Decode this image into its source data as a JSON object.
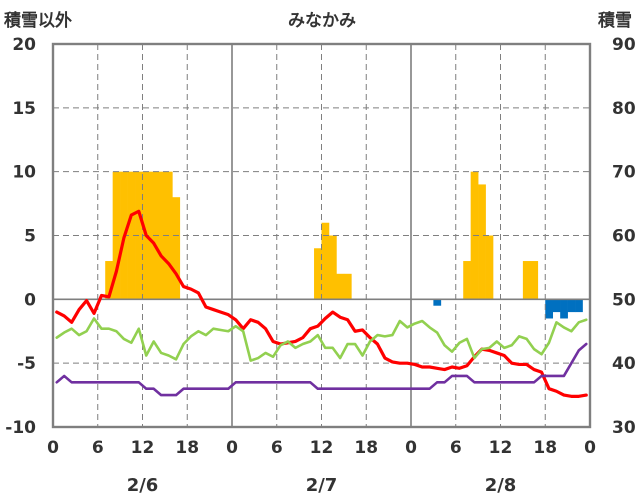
{
  "chart_data": {
    "type": "bar+line",
    "title": "みなかみ",
    "left_axis_title": "積雪以外",
    "right_axis_title": "積雪",
    "left_ylim": [
      -10,
      20
    ],
    "left_ticks": [
      "20",
      "15",
      "10",
      "5",
      "0",
      "-5",
      "-10"
    ],
    "right_ylim": [
      30,
      90
    ],
    "right_ticks": [
      "90",
      "80",
      "70",
      "60",
      "50",
      "40",
      "30"
    ],
    "x_hour_ticks": [
      "0",
      "6",
      "12",
      "18",
      "0",
      "6",
      "12",
      "18",
      "0",
      "6",
      "12",
      "18",
      "0"
    ],
    "dates": [
      "2/6",
      "2/7",
      "2/8"
    ],
    "x_range_hours": [
      0,
      72
    ],
    "colors": {
      "precip_positive": "#FFC000",
      "precip_negative": "#0070C0",
      "red": "#FF0000",
      "green": "#92D050",
      "purple": "#7030A0",
      "frame": "#7f7f7f"
    },
    "precip_bars": [
      {
        "h": 7,
        "v": 3
      },
      {
        "h": 8,
        "v": 10
      },
      {
        "h": 9,
        "v": 10
      },
      {
        "h": 10,
        "v": 10
      },
      {
        "h": 11,
        "v": 10
      },
      {
        "h": 12,
        "v": 10
      },
      {
        "h": 13,
        "v": 10
      },
      {
        "h": 14,
        "v": 10
      },
      {
        "h": 15,
        "v": 10
      },
      {
        "h": 16,
        "v": 8
      },
      {
        "h": 35,
        "v": 4
      },
      {
        "h": 36,
        "v": 6
      },
      {
        "h": 37,
        "v": 5
      },
      {
        "h": 38,
        "v": 2
      },
      {
        "h": 39,
        "v": 2
      },
      {
        "h": 51,
        "v": -0.5
      },
      {
        "h": 55,
        "v": 3
      },
      {
        "h": 56,
        "v": 10
      },
      {
        "h": 57,
        "v": 9
      },
      {
        "h": 58,
        "v": 5
      },
      {
        "h": 63,
        "v": 3
      },
      {
        "h": 64,
        "v": 3
      },
      {
        "h": 66,
        "v": -1.5
      },
      {
        "h": 67,
        "v": -1
      },
      {
        "h": 68,
        "v": -1.5
      },
      {
        "h": 69,
        "v": -1
      },
      {
        "h": 70,
        "v": -1
      }
    ],
    "series": [
      {
        "color": "red",
        "x": [
          0,
          1,
          2,
          3,
          4,
          5,
          6,
          7,
          8,
          9,
          10,
          11,
          12,
          13,
          14,
          15,
          16,
          17,
          18,
          19,
          20,
          21,
          22,
          23,
          24,
          25,
          26,
          27,
          28,
          29,
          30,
          31,
          32,
          33,
          34,
          35,
          36,
          37,
          38,
          39,
          40,
          41,
          42,
          43,
          44,
          45,
          46,
          47,
          48,
          49,
          50,
          51,
          52,
          53,
          54,
          55,
          56,
          57,
          58,
          59,
          60,
          61,
          62,
          63,
          64,
          65,
          66,
          67,
          68,
          69,
          70,
          71
        ],
        "y": [
          -1,
          -1.3,
          -1.8,
          -0.8,
          -0.1,
          -1.1,
          0.3,
          0.2,
          2.2,
          4.8,
          6.6,
          6.9,
          5,
          4.4,
          3.4,
          2.8,
          2,
          1,
          0.8,
          0.5,
          -0.6,
          -0.8,
          -1,
          -1.2,
          -1.6,
          -2.3,
          -1.6,
          -1.8,
          -2.3,
          -3.3,
          -3.5,
          -3.4,
          -3.3,
          -3,
          -2.3,
          -2.1,
          -1.5,
          -1,
          -1.4,
          -1.6,
          -2.5,
          -2.4,
          -3,
          -3.5,
          -4.6,
          -4.9,
          -5,
          -5,
          -5.1,
          -5.3,
          -5.3,
          -5.4,
          -5.5,
          -5.3,
          -5.4,
          -5.2,
          -4.5,
          -3.9,
          -4,
          -4.2,
          -4.4,
          -5,
          -5.1,
          -5.1,
          -5.5,
          -5.7,
          -7,
          -7.2,
          -7.5,
          -7.6,
          -7.6,
          -7.5
        ]
      },
      {
        "color": "green",
        "x": [
          0,
          1,
          2,
          3,
          4,
          5,
          6,
          7,
          8,
          9,
          10,
          11,
          12,
          13,
          14,
          15,
          16,
          17,
          18,
          19,
          20,
          21,
          22,
          23,
          24,
          25,
          26,
          27,
          28,
          29,
          30,
          31,
          32,
          33,
          34,
          35,
          36,
          37,
          38,
          39,
          40,
          41,
          42,
          43,
          44,
          45,
          46,
          47,
          48,
          49,
          50,
          51,
          52,
          53,
          54,
          55,
          56,
          57,
          58,
          59,
          60,
          61,
          62,
          63,
          64,
          65,
          66,
          67,
          68,
          69,
          70,
          71
        ],
        "y": [
          -3,
          -2.6,
          -2.3,
          -2.8,
          -2.5,
          -1.5,
          -2.3,
          -2.3,
          -2.5,
          -3.1,
          -3.4,
          -2.3,
          -4.4,
          -3.3,
          -4.2,
          -4.4,
          -4.7,
          -3.5,
          -2.9,
          -2.5,
          -2.8,
          -2.3,
          -2.4,
          -2.5,
          -2.1,
          -2.5,
          -4.8,
          -4.6,
          -4.2,
          -4.5,
          -3.6,
          -3.3,
          -3.8,
          -3.5,
          -3.3,
          -2.8,
          -3.8,
          -3.8,
          -4.6,
          -3.5,
          -3.5,
          -4.4,
          -3.3,
          -2.8,
          -2.9,
          -2.8,
          -1.7,
          -2.2,
          -1.9,
          -1.7,
          -2.2,
          -2.6,
          -3.6,
          -4.1,
          -3.4,
          -3.1,
          -4.6,
          -3.9,
          -3.8,
          -3.3,
          -3.8,
          -3.6,
          -2.9,
          -3.1,
          -3.9,
          -4.3,
          -3.4,
          -1.8,
          -2.2,
          -2.5,
          -1.8,
          -1.6
        ]
      },
      {
        "color": "purple",
        "x": [
          0,
          1,
          2,
          3,
          4,
          5,
          6,
          7,
          8,
          9,
          10,
          11,
          12,
          13,
          14,
          15,
          16,
          17,
          18,
          19,
          20,
          21,
          22,
          23,
          24,
          25,
          26,
          27,
          28,
          29,
          30,
          31,
          32,
          33,
          34,
          35,
          36,
          37,
          38,
          39,
          40,
          41,
          42,
          43,
          44,
          45,
          46,
          47,
          48,
          49,
          50,
          51,
          52,
          53,
          54,
          55,
          56,
          57,
          58,
          59,
          60,
          61,
          62,
          63,
          64,
          65,
          66,
          67,
          68,
          69,
          70,
          71
        ],
        "y": [
          -6.5,
          -6,
          -6.5,
          -6.5,
          -6.5,
          -6.5,
          -6.5,
          -6.5,
          -6.5,
          -6.5,
          -6.5,
          -6.5,
          -7,
          -7,
          -7.5,
          -7.5,
          -7.5,
          -7,
          -7,
          -7,
          -7,
          -7,
          -7,
          -7,
          -6.5,
          -6.5,
          -6.5,
          -6.5,
          -6.5,
          -6.5,
          -6.5,
          -6.5,
          -6.5,
          -6.5,
          -6.5,
          -7,
          -7,
          -7,
          -7,
          -7,
          -7,
          -7,
          -7,
          -7,
          -7,
          -7,
          -7,
          -7,
          -7,
          -7,
          -7,
          -6.5,
          -6.5,
          -6,
          -6,
          -6,
          -6.5,
          -6.5,
          -6.5,
          -6.5,
          -6.5,
          -6.5,
          -6.5,
          -6.5,
          -6.5,
          -6,
          -6,
          -6,
          -6,
          -5,
          -4,
          -3.5
        ]
      }
    ]
  }
}
